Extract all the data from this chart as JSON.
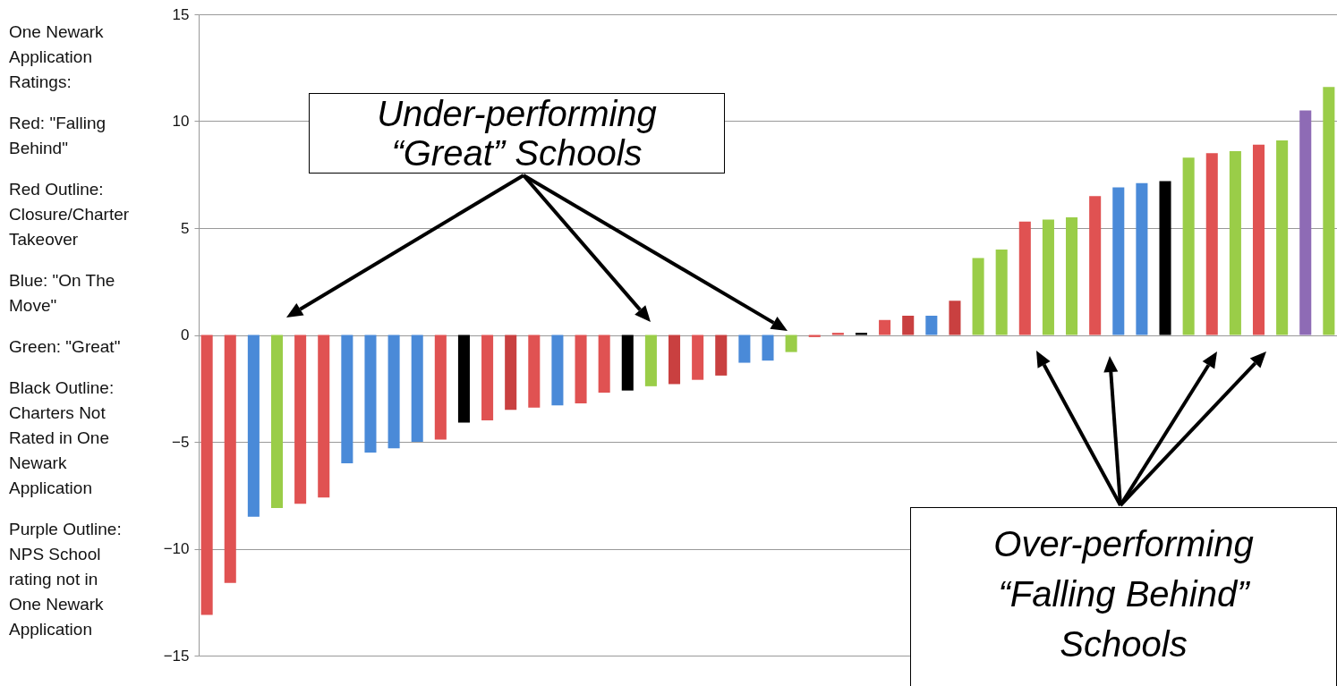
{
  "chart_data": {
    "type": "bar",
    "categories": [
      null,
      null,
      null,
      null,
      null,
      null,
      null,
      null,
      null,
      null,
      null,
      null,
      null,
      null,
      null,
      null,
      null,
      null,
      null,
      null,
      null,
      null,
      null,
      null,
      null,
      null,
      null,
      null,
      null,
      null,
      null,
      null,
      null,
      null,
      null,
      null,
      null,
      null,
      null,
      null,
      null,
      null,
      null,
      null,
      null,
      null,
      null,
      null,
      null
    ],
    "values": [
      -13.1,
      -11.6,
      -8.5,
      -8.1,
      -7.9,
      -7.6,
      -6.0,
      -5.5,
      -5.3,
      -5.0,
      -4.9,
      -4.1,
      -4.0,
      -3.5,
      -3.4,
      -3.3,
      -3.2,
      -2.7,
      -2.6,
      -2.4,
      -2.3,
      -2.1,
      -1.9,
      -1.3,
      -1.2,
      -0.8,
      -0.1,
      0.1,
      0.1,
      0.7,
      0.9,
      0.9,
      1.6,
      3.6,
      4.0,
      5.3,
      5.4,
      5.5,
      6.5,
      6.9,
      7.1,
      7.2,
      8.3,
      8.5,
      8.6,
      8.9,
      9.1,
      10.5,
      11.6
    ],
    "colors": [
      "#e05252",
      "#e05252",
      "#4a8ad8",
      "#9acd48",
      "#e05252",
      "#e05252",
      "#4a8ad8",
      "#4a8ad8",
      "#4a8ad8",
      "#4a8ad8",
      "#e05252",
      "#000000",
      "#e05252",
      "#c94040",
      "#e05252",
      "#4a8ad8",
      "#e05252",
      "#e05252",
      "#000000",
      "#9acd48",
      "#c94040",
      "#e05252",
      "#c94040",
      "#4a8ad8",
      "#4a8ad8",
      "#9acd48",
      "#e05252",
      "#e05252",
      "#000000",
      "#e05252",
      "#c94040",
      "#4a8ad8",
      "#c94040",
      "#9acd48",
      "#9acd48",
      "#e05252",
      "#9acd48",
      "#9acd48",
      "#e05252",
      "#4a8ad8",
      "#4a8ad8",
      "#000000",
      "#9acd48",
      "#e05252",
      "#9acd48",
      "#e05252",
      "#9acd48",
      "#8e6bb5",
      "#9acd48"
    ],
    "ylim": [
      -15,
      15
    ],
    "yticks": [
      -15,
      -10,
      -5,
      0,
      5,
      10,
      15
    ],
    "grid": "y",
    "tick_labels": "y",
    "annotations": [
      "One Newark Application Ratings:",
      "Red: \"Falling Behind\"",
      "Red Outline: Closure/Charter Takeover",
      "Blue: \"On The Move\"",
      "Green: \"Great\"",
      "Black Outline: Charters Not Rated  in One Newark Application",
      "Purple Outline: NPS School rating not in One Newark Application",
      "Under-performing “Great” Schools",
      "Over-performing “Falling Behind” Schools"
    ]
  }
}
